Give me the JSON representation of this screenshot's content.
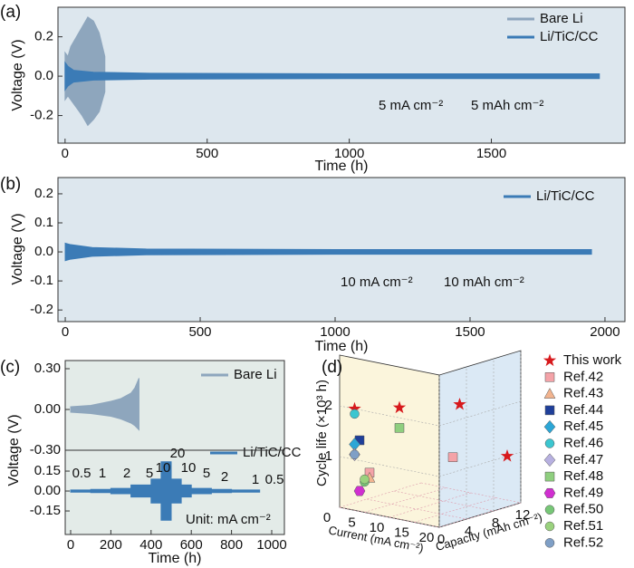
{
  "chart_data": [
    {
      "type": "band",
      "label": "(a)",
      "x_label": "Time (h)",
      "y_label": "Voltage (V)",
      "xlim": [
        -25,
        1970
      ],
      "ylim": [
        -0.34,
        0.35
      ],
      "xticks": [
        0,
        500,
        1000,
        1500
      ],
      "yticks": [
        -0.2,
        {
          "value": 0,
          "label": "0.0"
        },
        0.2
      ],
      "legend": "upper right",
      "annotations": [
        "5 mA cm⁻²",
        "5 mAh cm⁻²"
      ],
      "series": [
        {
          "name": "Bare Li",
          "color": "#8ea6bd",
          "x": [
            0,
            10,
            20,
            40,
            60,
            80,
            100,
            120,
            140
          ],
          "high": [
            0.12,
            0.1,
            0.15,
            0.2,
            0.25,
            0.3,
            0.28,
            0.22,
            0.1
          ],
          "low": [
            -0.12,
            -0.1,
            -0.12,
            -0.16,
            -0.2,
            -0.25,
            -0.22,
            -0.18,
            -0.08
          ]
        },
        {
          "name": "Li/TiC/CC",
          "color": "#3b7bb6",
          "x": [
            0,
            10,
            30,
            100,
            300,
            1000,
            1880
          ],
          "high": [
            0.07,
            0.05,
            0.03,
            0.02,
            0.015,
            0.012,
            0.012
          ],
          "low": [
            -0.07,
            -0.05,
            -0.03,
            -0.02,
            -0.015,
            -0.012,
            -0.012
          ]
        }
      ]
    },
    {
      "type": "band",
      "label": "(b)",
      "x_label": "Time (h)",
      "y_label": "Voltage (V)",
      "xlim": [
        -27,
        2074
      ],
      "ylim": [
        -0.24,
        0.256
      ],
      "xticks": [
        0,
        500,
        1000,
        1500,
        2000
      ],
      "yticks": [
        -0.2,
        -0.1,
        {
          "value": 0,
          "label": "0.0"
        },
        0.1,
        0.2
      ],
      "legend": "upper right",
      "annotations": [
        "10 mA cm⁻²",
        "10 mAh cm⁻²"
      ],
      "series": [
        {
          "name": "Li/TiC/CC",
          "color": "#3b7bb6",
          "x": [
            0,
            20,
            100,
            300,
            1000,
            1950
          ],
          "high": [
            0.03,
            0.025,
            0.015,
            0.01,
            0.008,
            0.008
          ],
          "low": [
            -0.03,
            -0.025,
            -0.015,
            -0.01,
            -0.008,
            -0.008
          ]
        }
      ]
    },
    {
      "type": "band",
      "label": "(c)",
      "y_label": "Voltage (V)",
      "xlim": [
        -27,
        1063
      ],
      "ylim": [
        -0.3,
        0.36
      ],
      "yticks": [
        {
          "value": -0.3,
          "label": "-0.30"
        },
        {
          "value": 0,
          "label": "0.00"
        },
        {
          "value": 0.3,
          "label": "0.30"
        }
      ],
      "legend": "upper right",
      "series": [
        {
          "name": "Bare Li",
          "color": "#8ea6bd",
          "x": [
            0,
            50,
            100,
            150,
            200,
            250,
            300,
            320,
            340
          ],
          "high": [
            0.02,
            0.025,
            0.03,
            0.045,
            0.06,
            0.08,
            0.12,
            0.16,
            0.23
          ],
          "low": [
            -0.02,
            -0.025,
            -0.03,
            -0.04,
            -0.05,
            -0.07,
            -0.1,
            -0.12,
            -0.15
          ]
        }
      ]
    },
    {
      "type": "band",
      "x_label": "Time (h)",
      "xlim": [
        -27,
        1063
      ],
      "ylim": [
        -0.327,
        0.307
      ],
      "xticks": [
        0,
        200,
        400,
        600,
        800,
        1000
      ],
      "yticks": [
        {
          "value": -0.15,
          "label": "-0.15"
        },
        {
          "value": 0,
          "label": "0.00"
        },
        {
          "value": 0.15,
          "label": "0.15"
        }
      ],
      "legend": "upper right",
      "annotations": [
        "0.5",
        "1",
        "2",
        "5",
        "10",
        "20",
        "10",
        "5",
        "2",
        "1",
        "0.5"
      ],
      "unit_note": "Unit: mA cm⁻²",
      "series": [
        {
          "name": "Li/TiC/CC",
          "color": "#3b7bb6",
          "x": [
            0,
            100,
            100,
            200,
            200,
            300,
            300,
            400,
            400,
            450,
            450,
            500,
            500,
            550,
            550,
            600,
            600,
            700,
            700,
            800,
            800,
            940
          ],
          "high": [
            0.008,
            0.008,
            0.012,
            0.012,
            0.02,
            0.02,
            0.045,
            0.045,
            0.09,
            0.09,
            0.22,
            0.22,
            0.09,
            0.09,
            0.045,
            0.045,
            0.02,
            0.02,
            0.012,
            0.012,
            0.008,
            0.008
          ],
          "low": [
            -0.008,
            -0.008,
            -0.012,
            -0.012,
            -0.02,
            -0.02,
            -0.045,
            -0.045,
            -0.09,
            -0.09,
            -0.22,
            -0.22,
            -0.09,
            -0.09,
            -0.045,
            -0.045,
            -0.02,
            -0.02,
            -0.012,
            -0.012,
            -0.008,
            -0.008
          ]
        }
      ]
    },
    {
      "type": "scatter3d",
      "label": "(d)",
      "x_label": "Current (mA cm⁻²)",
      "y_label": "Capacity (mAh cm⁻²)",
      "z_label": "Cycle life (×10³ h)",
      "xlim": [
        0,
        20
      ],
      "ylim": [
        0,
        12
      ],
      "zlim": [
        0,
        3
      ],
      "xticks": [
        0,
        5,
        10,
        15,
        20
      ],
      "yticks": [
        0,
        4,
        8,
        12
      ],
      "zticks": [
        1,
        2
      ],
      "series": [
        {
          "name": "This work",
          "color": "#d7191c",
          "marker": "star",
          "points": [
            [
              3,
              0,
              2.0
            ],
            [
              12,
              0,
              2.2
            ],
            [
              20,
              3,
              2.3
            ],
            [
              20,
              10,
              1.0
            ]
          ]
        },
        {
          "name": "Ref.42",
          "color": "#f4a3a8",
          "marker": "square",
          "points": [
            [
              6,
              0,
              0.8
            ],
            [
              20,
              2,
              1.3
            ]
          ]
        },
        {
          "name": "Ref.43",
          "color": "#f2b48f",
          "marker": "triangle",
          "points": [
            [
              6,
              0,
              0.7
            ]
          ]
        },
        {
          "name": "Ref.44",
          "color": "#1f3f9a",
          "marker": "square",
          "points": [
            [
              4,
              0,
              1.4
            ]
          ]
        },
        {
          "name": "Ref.45",
          "color": "#2ca6d6",
          "marker": "diamond",
          "points": [
            [
              3,
              0,
              1.3
            ]
          ]
        },
        {
          "name": "Ref.46",
          "color": "#3cc6d0",
          "marker": "circle",
          "points": [
            [
              3,
              0,
              1.9
            ]
          ]
        },
        {
          "name": "Ref.47",
          "color": "#b7b0e0",
          "marker": "diamond",
          "points": [
            [
              3,
              0,
              1.1
            ]
          ]
        },
        {
          "name": "Ref.48",
          "color": "#8fcf7f",
          "marker": "square",
          "points": [
            [
              12,
              0,
              1.8
            ]
          ]
        },
        {
          "name": "Ref.49",
          "color": "#d02fd0",
          "marker": "hexagon",
          "points": [
            [
              4,
              0,
              0.4
            ]
          ]
        },
        {
          "name": "Ref.50",
          "color": "#77c777",
          "marker": "circle",
          "points": [
            [
              5,
              0,
              0.6
            ]
          ]
        },
        {
          "name": "Ref.51",
          "color": "#9ad27e",
          "marker": "circle",
          "points": [
            [
              5,
              0,
              0.65
            ]
          ]
        },
        {
          "name": "Ref.52",
          "color": "#7f9fc6",
          "marker": "circle",
          "points": [
            [
              3,
              0,
              1.1
            ]
          ]
        }
      ]
    }
  ]
}
